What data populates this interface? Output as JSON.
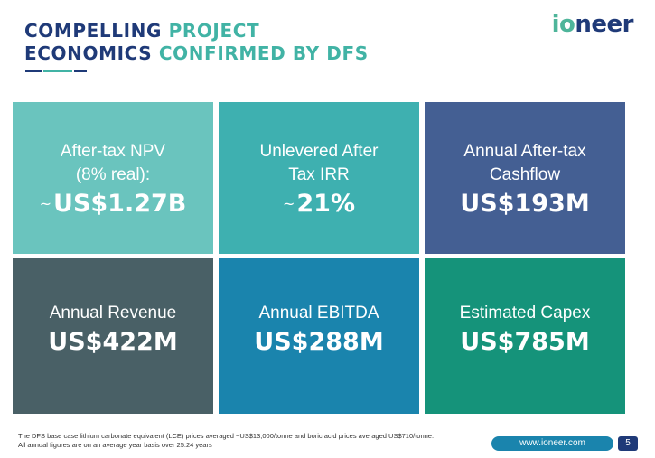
{
  "title": {
    "line1_dark": "COMPELLING ",
    "line1_accent": "PROJECT",
    "line2_dark": "ECONOMICS ",
    "line2_accent": "CONFIRMED BY DFS"
  },
  "logo": {
    "part1": "io",
    "part2": "neer"
  },
  "colors": {
    "navy": "#1f3a78",
    "teal_light": "#6ac4be",
    "teal": "#3eb0b0",
    "slate_blue": "#445f93",
    "dark_slate": "#496066",
    "ocean_blue": "#1a84ad",
    "green": "#15937a"
  },
  "tiles": [
    {
      "label": "After-tax NPV\n(8% real):",
      "prefix": "~",
      "value": "US$1.27B"
    },
    {
      "label": "Unlevered After\nTax IRR",
      "prefix": "~",
      "value": "21%"
    },
    {
      "label": "Annual After-tax\nCashflow",
      "prefix": "",
      "value": "US$193M"
    },
    {
      "label": "Annual Revenue",
      "prefix": "",
      "value": "US$422M"
    },
    {
      "label": "Annual EBITDA",
      "prefix": "",
      "value": "US$288M"
    },
    {
      "label": "Estimated Capex",
      "prefix": "",
      "value": "US$785M"
    }
  ],
  "footnote": {
    "line1": "The DFS base case lithium carbonate equivalent (LCE) prices averaged ~US$13,000/tonne and boric acid prices averaged US$710/tonne.",
    "line2": "All annual figures are on an average year basis over 25.24 years"
  },
  "footer": {
    "website": "www.ioneer.com",
    "page_number": "5"
  }
}
